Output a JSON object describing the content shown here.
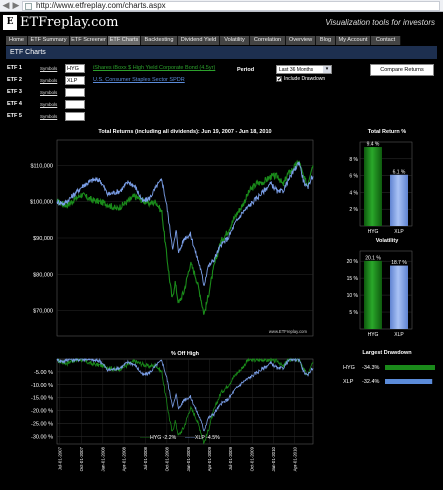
{
  "browser": {
    "url": "http://www.etfreplay.com/charts.aspx",
    "back_glyph": "◀",
    "forward_glyph": "▶"
  },
  "header": {
    "logo_glyph": "E",
    "site_name": "ETFreplay.com",
    "tagline": "Visualization tools for investors"
  },
  "nav": [
    "Home",
    "ETF Summary",
    "ETF Screener",
    "ETF Charts",
    "Backtesting",
    "Dividend Yield",
    "Volatility",
    "Correlation",
    "Overview",
    "Blog",
    "My Account",
    "Contact"
  ],
  "nav_active": "ETF Charts",
  "section_title": "ETF Charts",
  "form": {
    "symbols_link": "Symbols",
    "etfs": [
      {
        "label": "ETF 1",
        "value": "HYG",
        "fund": "iShares iBoxx $ High Yield Corporate Bond (4.5yr)",
        "color": "#2ca02c"
      },
      {
        "label": "ETF 2",
        "value": "XLP",
        "fund": "U.S. Consumer Staples Sector SPDR",
        "color": "#5b8bd9"
      },
      {
        "label": "ETF 3",
        "value": "",
        "fund": ""
      },
      {
        "label": "ETF 4",
        "value": "",
        "fund": ""
      },
      {
        "label": "ETF 5",
        "value": "",
        "fund": ""
      }
    ],
    "period_label": "Period",
    "period_value": "Last 36 Months",
    "include_drawdown_label": "Include Drawdown",
    "include_drawdown_checked": true,
    "compare_button": "Compare Returns"
  },
  "watermark": "www.ETFreplay.com",
  "legend_line_glyph": "——",
  "colors": {
    "hyg": "#1a8a1a",
    "xlp": "#7b9fe8",
    "section_bg": "#1d2f4f",
    "nav_bg": "#444444"
  },
  "chart_data": [
    {
      "type": "line",
      "title": "Total Returns (including all dividends): Jun 19, 2007 - Jun 18, 2010",
      "x_range": [
        "2007-06-19",
        "2010-06-18"
      ],
      "ylim": [
        63000,
        117000
      ],
      "y_ticks": [
        "$70,000",
        "$80,000",
        "$90,000",
        "$100,000",
        "$110,000"
      ],
      "y_tick_values": [
        70000,
        80000,
        90000,
        100000,
        110000
      ],
      "grid": true,
      "series": [
        {
          "name": "HYG",
          "color": "#1a8a1a",
          "points": [
            [
              "2007-06-19",
              100000
            ],
            [
              "2007-08-01",
              99000
            ],
            [
              "2007-10-01",
              102000
            ],
            [
              "2007-11-15",
              100500
            ],
            [
              "2008-01-15",
              99500
            ],
            [
              "2008-03-01",
              98000
            ],
            [
              "2008-04-15",
              100000
            ],
            [
              "2008-05-15",
              101500
            ],
            [
              "2008-06-15",
              100500
            ],
            [
              "2008-07-15",
              99500
            ],
            [
              "2008-08-15",
              100000
            ],
            [
              "2008-09-10",
              97000
            ],
            [
              "2008-09-25",
              88000
            ],
            [
              "2008-10-10",
              80000
            ],
            [
              "2008-10-24",
              73000
            ],
            [
              "2008-11-05",
              78000
            ],
            [
              "2008-11-20",
              72000
            ],
            [
              "2008-12-12",
              75000
            ],
            [
              "2008-12-30",
              80000
            ],
            [
              "2009-01-10",
              83000
            ],
            [
              "2009-02-01",
              79500
            ],
            [
              "2009-02-20",
              74500
            ],
            [
              "2009-03-09",
              69000
            ],
            [
              "2009-03-25",
              73500
            ],
            [
              "2009-04-20",
              82000
            ],
            [
              "2009-05-20",
              89000
            ],
            [
              "2009-06-20",
              92000
            ],
            [
              "2009-07-20",
              96000
            ],
            [
              "2009-08-20",
              99000
            ],
            [
              "2009-09-20",
              103000
            ],
            [
              "2009-10-20",
              105000
            ],
            [
              "2009-11-20",
              105500
            ],
            [
              "2009-12-20",
              107000
            ],
            [
              "2010-01-20",
              107000
            ],
            [
              "2010-02-10",
              104500
            ],
            [
              "2010-03-01",
              107500
            ],
            [
              "2010-04-20",
              111000
            ],
            [
              "2010-05-07",
              107000
            ],
            [
              "2010-05-25",
              104500
            ],
            [
              "2010-06-10",
              109000
            ],
            [
              "2010-06-18",
              110000
            ]
          ]
        },
        {
          "name": "XLP",
          "color": "#7b9fe8",
          "points": [
            [
              "2007-06-19",
              100000
            ],
            [
              "2007-07-20",
              99500
            ],
            [
              "2007-08-15",
              101000
            ],
            [
              "2007-10-10",
              104500
            ],
            [
              "2007-11-20",
              106000
            ],
            [
              "2007-12-20",
              106000
            ],
            [
              "2008-01-22",
              102000
            ],
            [
              "2008-03-15",
              103000
            ],
            [
              "2008-04-20",
              105500
            ],
            [
              "2008-05-20",
              104000
            ],
            [
              "2008-06-20",
              100000
            ],
            [
              "2008-07-20",
              101000
            ],
            [
              "2008-08-20",
              104500
            ],
            [
              "2008-09-10",
              106000
            ],
            [
              "2008-09-30",
              99000
            ],
            [
              "2008-10-15",
              92000
            ],
            [
              "2008-10-27",
              87000
            ],
            [
              "2008-11-10",
              92000
            ],
            [
              "2008-11-21",
              86000
            ],
            [
              "2008-12-15",
              90000
            ],
            [
              "2009-01-10",
              91000
            ],
            [
              "2009-02-01",
              86000
            ],
            [
              "2009-02-20",
              82000
            ],
            [
              "2009-03-09",
              77000
            ],
            [
              "2009-03-25",
              82000
            ],
            [
              "2009-04-20",
              84000
            ],
            [
              "2009-05-20",
              88000
            ],
            [
              "2009-06-20",
              90000
            ],
            [
              "2009-07-20",
              94000
            ],
            [
              "2009-08-20",
              97000
            ],
            [
              "2009-09-20",
              99000
            ],
            [
              "2009-10-20",
              101000
            ],
            [
              "2009-11-20",
              103000
            ],
            [
              "2009-12-20",
              105000
            ],
            [
              "2010-01-20",
              102500
            ],
            [
              "2010-02-10",
              103000
            ],
            [
              "2010-03-01",
              105500
            ],
            [
              "2010-04-20",
              111000
            ],
            [
              "2010-05-07",
              106000
            ],
            [
              "2010-05-25",
              103500
            ],
            [
              "2010-06-10",
              106500
            ],
            [
              "2010-06-18",
              107000
            ]
          ]
        }
      ]
    },
    {
      "type": "bar",
      "title": "Total Return %",
      "categories": [
        "HYG",
        "XLP"
      ],
      "values": [
        9.4,
        6.1
      ],
      "value_labels": [
        "9.4 %",
        "6.1 %"
      ],
      "ylim": [
        0,
        10
      ],
      "y_ticks": [
        "2 %",
        "4 %",
        "6 %",
        "8 %"
      ],
      "y_tick_values": [
        2,
        4,
        6,
        8
      ],
      "colors": [
        "#2a9a2a",
        "#7b9fe8"
      ]
    },
    {
      "type": "bar",
      "title": "Volatility",
      "categories": [
        "HYG",
        "XLP"
      ],
      "values": [
        20.1,
        18.7
      ],
      "value_labels": [
        "20.1 %",
        "18.7 %"
      ],
      "ylim": [
        0,
        23
      ],
      "y_ticks": [
        "5 %",
        "10 %",
        "15 %",
        "20 %"
      ],
      "y_tick_values": [
        5,
        10,
        15,
        20
      ],
      "colors": [
        "#2a9a2a",
        "#7b9fe8"
      ]
    },
    {
      "type": "table",
      "title": "Largest Drawdown",
      "rows": [
        {
          "name": "HYG",
          "label": "-34.3%",
          "value": 34.3,
          "color": "#1a8a1a"
        },
        {
          "name": "XLP",
          "label": "-32.4%",
          "value": 32.4,
          "color": "#5b8bd9"
        }
      ]
    },
    {
      "type": "area",
      "title": "% Off High",
      "ylim": [
        -33,
        0
      ],
      "y_ticks": [
        "-5.00 %",
        "-10.00 %",
        "-15.00 %",
        "-20.00 %",
        "-25.00 %",
        "-30.00 %"
      ],
      "y_tick_values": [
        -5,
        -10,
        -15,
        -20,
        -25,
        -30
      ],
      "x_range": [
        "2007-06-19",
        "2010-06-18"
      ],
      "x_tick_labels": [
        "Jul-01-2007",
        "Oct-01-2007",
        "Jan-01-2008",
        "Apr-01-2008",
        "Jul-01-2008",
        "Oct-01-2008",
        "Jan-01-2009",
        "Apr-01-2009",
        "Jul-01-2009",
        "Oct-01-2009",
        "Jan-01-2010",
        "Apr-01-2010"
      ],
      "x_tick_dates": [
        "2007-07-01",
        "2007-10-01",
        "2008-01-01",
        "2008-04-01",
        "2008-07-01",
        "2008-10-01",
        "2009-01-01",
        "2009-04-01",
        "2009-07-01",
        "2009-10-01",
        "2010-01-01",
        "2010-04-01"
      ],
      "legend": [
        "HYG -2.2%",
        "XLP -4.5%"
      ],
      "series": [
        {
          "name": "HYG -2.2%",
          "color": "#1a8a1a"
        },
        {
          "name": "XLP -4.5%",
          "color": "#7b9fe8"
        }
      ]
    }
  ]
}
